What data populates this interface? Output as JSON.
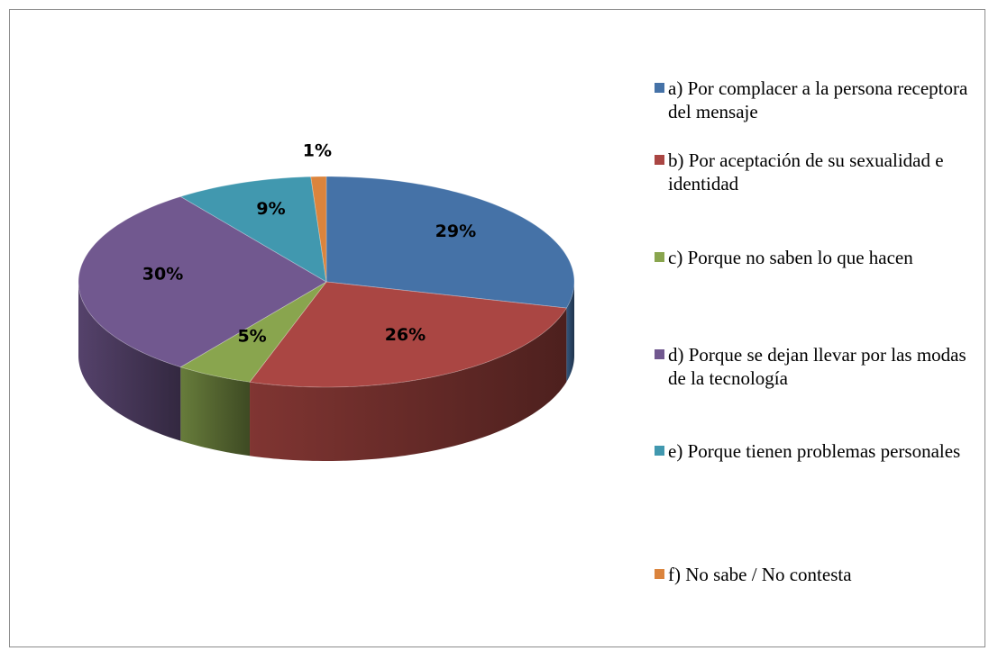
{
  "chart_data": {
    "type": "pie",
    "categories": [
      "a) Por complacer a la persona receptora del mensaje",
      "b) Por aceptación de su sexualidad e identidad",
      "c) Porque no saben lo que hacen",
      "d) Porque se dejan llevar por las modas de la tecnología",
      "e) Porque tienen problemas personales",
      "f) No sabe / No contesta"
    ],
    "values": [
      29,
      26,
      5,
      30,
      9,
      1
    ],
    "value_labels": [
      "29%",
      "26%",
      "5%",
      "30%",
      "9%",
      "1%"
    ],
    "colors": [
      "#4572a7",
      "#aa4643",
      "#89a54e",
      "#71588f",
      "#4198af",
      "#db843d"
    ],
    "legend": "right"
  }
}
